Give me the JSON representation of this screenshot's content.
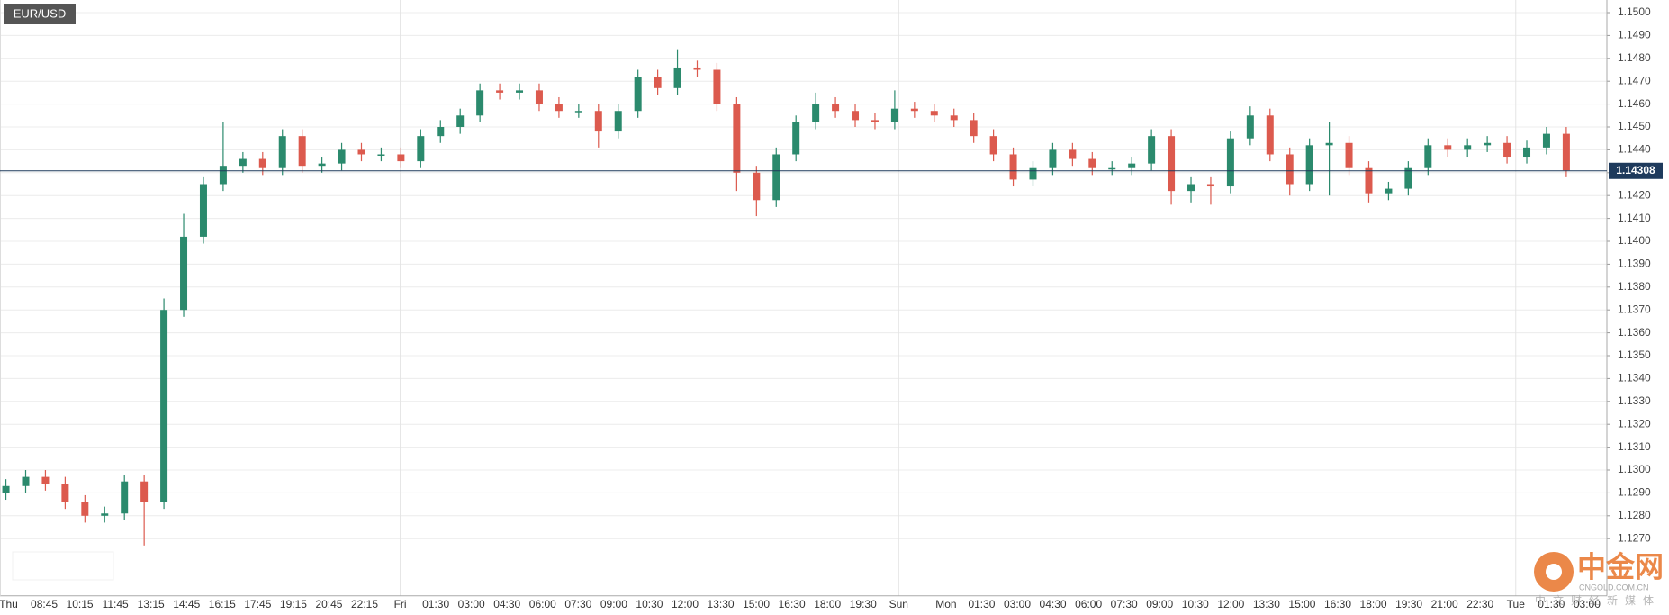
{
  "chart_data": {
    "type": "candlestick",
    "title": "EUR/USD",
    "up_color": "#2b8a6d",
    "down_color": "#dc5a4e",
    "grid": true,
    "ylim": [
      1.1245,
      1.1505
    ],
    "yticks": [
      {
        "value": 1.127,
        "label": "1.1270"
      },
      {
        "value": 1.128,
        "label": "1.1280"
      },
      {
        "value": 1.129,
        "label": "1.1290"
      },
      {
        "value": 1.13,
        "label": "1.1300"
      },
      {
        "value": 1.131,
        "label": "1.1310"
      },
      {
        "value": 1.132,
        "label": "1.1320"
      },
      {
        "value": 1.133,
        "label": "1.1330"
      },
      {
        "value": 1.134,
        "label": "1.1340"
      },
      {
        "value": 1.135,
        "label": "1.1350"
      },
      {
        "value": 1.136,
        "label": "1.1360"
      },
      {
        "value": 1.137,
        "label": "1.1370"
      },
      {
        "value": 1.138,
        "label": "1.1380"
      },
      {
        "value": 1.139,
        "label": "1.1390"
      },
      {
        "value": 1.14,
        "label": "1.1400"
      },
      {
        "value": 1.141,
        "label": "1.1410"
      },
      {
        "value": 1.142,
        "label": "1.1420"
      },
      {
        "value": 1.143,
        "label": "1.1430"
      },
      {
        "value": 1.144,
        "label": "1.1440"
      },
      {
        "value": 1.145,
        "label": "1.1450"
      },
      {
        "value": 1.146,
        "label": "1.1460"
      },
      {
        "value": 1.147,
        "label": "1.1470"
      },
      {
        "value": 1.148,
        "label": "1.1480"
      },
      {
        "value": 1.149,
        "label": "1.1490"
      },
      {
        "value": 1.15,
        "label": "1.1500"
      }
    ],
    "x_labels": [
      "Thu",
      "08:45",
      "10:15",
      "11:45",
      "13:15",
      "14:45",
      "16:15",
      "17:45",
      "19:15",
      "20:45",
      "22:15",
      "Fri",
      "01:30",
      "03:00",
      "04:30",
      "06:00",
      "07:30",
      "09:00",
      "10:30",
      "12:00",
      "13:30",
      "15:00",
      "16:30",
      "18:00",
      "19:30",
      "Sun",
      "Mon",
      "01:30",
      "03:00",
      "04:30",
      "06:00",
      "07:30",
      "09:00",
      "10:30",
      "12:00",
      "13:30",
      "15:00",
      "16:30",
      "18:00",
      "19:30",
      "21:00",
      "22:30",
      "Tue",
      "01:30",
      "03:00"
    ],
    "open": [
      1.129,
      1.1293,
      1.1297,
      1.1294,
      1.1286,
      1.128,
      1.1281,
      1.1295,
      1.1286,
      1.137,
      1.1402,
      1.1425,
      1.1433,
      1.1436,
      1.1432,
      1.1446,
      1.1433,
      1.1434,
      1.144,
      1.1438,
      1.1438,
      1.1435,
      1.1446,
      1.145,
      1.1455,
      1.1466,
      1.1465,
      1.1466,
      1.146,
      1.1457,
      1.1457,
      1.1448,
      1.1457,
      1.1472,
      1.1467,
      1.1476,
      1.1475,
      1.146,
      1.143,
      1.1418,
      1.1438,
      1.1452,
      1.146,
      1.1457,
      1.1453,
      1.1452,
      1.1458,
      1.1457,
      1.1455,
      1.1453,
      1.1446,
      1.1438,
      1.1427,
      1.1432,
      1.144,
      1.1436,
      1.1432,
      1.1432,
      1.1434,
      1.1446,
      1.1422,
      1.1425,
      1.1424,
      1.1445,
      1.1455,
      1.1438,
      1.1425,
      1.1442,
      1.1443,
      1.1432,
      1.1421,
      1.1423,
      1.1432,
      1.1442,
      1.144,
      1.1442,
      1.1443,
      1.1437,
      1.1441,
      1.1447
    ],
    "high": [
      1.1296,
      1.13,
      1.13,
      1.1297,
      1.1289,
      1.1284,
      1.1298,
      1.1298,
      1.1375,
      1.1412,
      1.1428,
      1.1452,
      1.1439,
      1.1439,
      1.1449,
      1.1449,
      1.1437,
      1.1443,
      1.1443,
      1.1441,
      1.1441,
      1.1449,
      1.1453,
      1.1458,
      1.1469,
      1.1469,
      1.1469,
      1.1469,
      1.1463,
      1.146,
      1.146,
      1.146,
      1.1475,
      1.1475,
      1.1484,
      1.1479,
      1.1478,
      1.1463,
      1.1433,
      1.1441,
      1.1455,
      1.1465,
      1.1463,
      1.146,
      1.1456,
      1.1466,
      1.1461,
      1.146,
      1.1458,
      1.1456,
      1.1449,
      1.1441,
      1.1435,
      1.1443,
      1.1443,
      1.1439,
      1.1435,
      1.1437,
      1.1449,
      1.1449,
      1.1428,
      1.1428,
      1.1448,
      1.1459,
      1.1458,
      1.1441,
      1.1445,
      1.1452,
      1.1446,
      1.1435,
      1.1426,
      1.1435,
      1.1445,
      1.1445,
      1.1445,
      1.1446,
      1.1446,
      1.1444,
      1.145,
      1.145
    ],
    "low": [
      1.1287,
      1.129,
      1.1291,
      1.1283,
      1.1277,
      1.1277,
      1.1278,
      1.1267,
      1.1283,
      1.1367,
      1.1399,
      1.1422,
      1.143,
      1.1429,
      1.1429,
      1.143,
      1.143,
      1.1431,
      1.1435,
      1.1435,
      1.1432,
      1.1432,
      1.1443,
      1.1447,
      1.1452,
      1.1462,
      1.1462,
      1.1457,
      1.1454,
      1.1454,
      1.1441,
      1.1445,
      1.1454,
      1.1464,
      1.1464,
      1.1472,
      1.1457,
      1.1422,
      1.1411,
      1.1415,
      1.1435,
      1.1449,
      1.1454,
      1.145,
      1.1449,
      1.1449,
      1.1454,
      1.1452,
      1.145,
      1.1443,
      1.1435,
      1.1424,
      1.1424,
      1.1429,
      1.1433,
      1.1429,
      1.1429,
      1.1429,
      1.1431,
      1.1416,
      1.1417,
      1.1416,
      1.1421,
      1.1442,
      1.1435,
      1.142,
      1.1422,
      1.142,
      1.1429,
      1.1417,
      1.1418,
      1.142,
      1.1429,
      1.1437,
      1.1437,
      1.1439,
      1.1434,
      1.1434,
      1.1438,
      1.1428
    ],
    "close": [
      1.1293,
      1.1297,
      1.1294,
      1.1286,
      1.128,
      1.1281,
      1.1295,
      1.1286,
      1.137,
      1.1402,
      1.1425,
      1.1433,
      1.1436,
      1.1432,
      1.1446,
      1.1433,
      1.1434,
      1.144,
      1.1438,
      1.1438,
      1.1435,
      1.1446,
      1.145,
      1.1455,
      1.1466,
      1.1465,
      1.1466,
      1.146,
      1.1457,
      1.1457,
      1.1448,
      1.1457,
      1.1472,
      1.1467,
      1.1476,
      1.1475,
      1.146,
      1.143,
      1.1418,
      1.1438,
      1.1452,
      1.146,
      1.1457,
      1.1453,
      1.1452,
      1.1458,
      1.1457,
      1.1455,
      1.1453,
      1.1446,
      1.1438,
      1.1427,
      1.1432,
      1.144,
      1.1436,
      1.1432,
      1.1432,
      1.1434,
      1.1446,
      1.1422,
      1.1425,
      1.1424,
      1.1445,
      1.1455,
      1.1438,
      1.1425,
      1.1442,
      1.1443,
      1.1432,
      1.1421,
      1.1423,
      1.1432,
      1.1442,
      1.144,
      1.1442,
      1.1443,
      1.1437,
      1.1441,
      1.1447,
      1.1431
    ],
    "current_price": 1.14308,
    "current_price_color": "#1e3a5c",
    "watermark": {
      "logo": "中金网",
      "site": "CNGOLD.COM.CN",
      "slogan": "中文财经新媒体"
    }
  }
}
